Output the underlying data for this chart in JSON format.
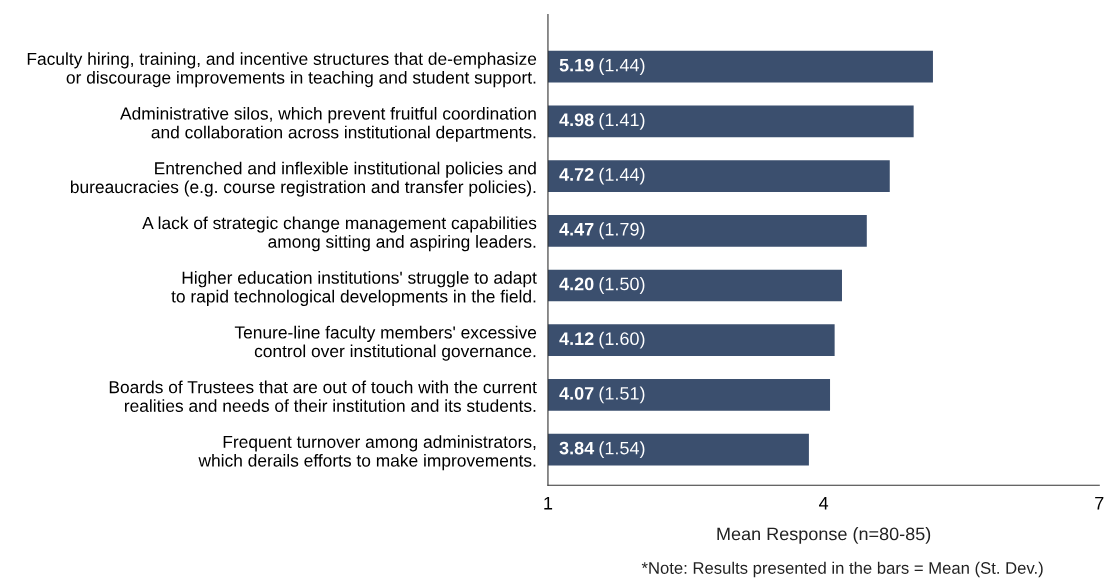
{
  "chart_data": {
    "type": "bar",
    "orientation": "horizontal",
    "categories": [
      "Faculty hiring, training, and incentive structures that de-emphasize\nor discourage improvements in teaching and student support.",
      "Administrative silos, which prevent fruitful coordination\nand collaboration across institutional departments.",
      "Entrenched and inflexible institutional policies and\nbureaucracies (e.g. course registration and transfer policies).",
      "A lack of strategic change management capabilities\namong sitting and aspiring leaders.",
      "Higher education institutions' struggle to adapt\nto rapid technological developments in the field.",
      "Tenure-line faculty members' excessive\ncontrol over institutional governance.",
      "Boards of Trustees that are out of touch with the current\nrealities and needs of their institution and its students.",
      "Frequent turnover among administrators,\nwhich derails efforts to make improvements."
    ],
    "values": [
      5.19,
      4.98,
      4.72,
      4.47,
      4.2,
      4.12,
      4.07,
      3.84
    ],
    "value_labels": [
      "5.19 (1.44)",
      "4.98 (1.41)",
      "4.72 (1.44)",
      "4.47 (1.79)",
      "4.20 (1.50)",
      "4.12 (1.60)",
      "4.07 (1.51)",
      "3.84 (1.54)"
    ],
    "color": "#3b4f6e",
    "xlim": [
      1,
      7
    ],
    "xticks": [
      1,
      4,
      7
    ],
    "xlabel": "Mean Response (n=80-85)",
    "annotations": [
      "*Note: Results presented in the bars = Mean (St. Dev.)"
    ],
    "grid": false,
    "legend": false
  }
}
